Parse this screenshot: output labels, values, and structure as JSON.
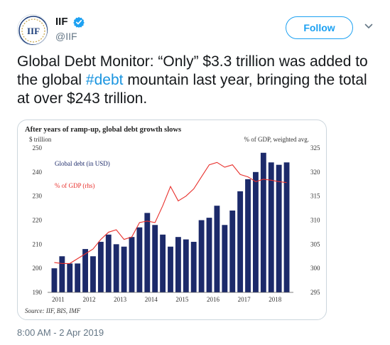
{
  "account": {
    "display_name": "IIF",
    "handle": "@IIF",
    "avatar_initials": "IIF",
    "verified": true
  },
  "follow_label": "Follow",
  "tweet": {
    "text_before": "Global Debt Monitor: “Only” $3.3 trillion was added to the global ",
    "hashtag": "#debt",
    "text_after": " mountain last year, bringing the total at over $243 trillion."
  },
  "timestamp": "8:00 AM - 2 Apr 2019",
  "colors": {
    "bar": "#1c2a6a",
    "line": "#e8302c",
    "link": "#1b95e0",
    "follow": "#1da1f2"
  },
  "chart_data": {
    "type": "bar",
    "title": "After years of ramp-up, global debt growth slows",
    "left_unit": "$ trillion",
    "right_unit": "% of GDP, weighted avg.",
    "source": "Source: IIF, BIS, IMF",
    "ylim": [
      190,
      250
    ],
    "y_ticks": [
      190,
      200,
      210,
      220,
      230,
      240,
      250
    ],
    "y2lim": [
      295,
      325
    ],
    "y2_ticks": [
      295,
      300,
      305,
      310,
      315,
      320,
      325
    ],
    "x_tick_labels": [
      "2011",
      "2012",
      "2013",
      "2014",
      "2015",
      "2016",
      "2017",
      "2018"
    ],
    "series": [
      {
        "name": "Global debt (in USD)",
        "kind": "bar",
        "axis": "left",
        "values": [
          200,
          205,
          202,
          202,
          208,
          205,
          211,
          214,
          210,
          209,
          213,
          217,
          223,
          218,
          214,
          209,
          213,
          212,
          211,
          220,
          221,
          226,
          218,
          224,
          232,
          237,
          240,
          248,
          244,
          243,
          244
        ]
      },
      {
        "name": "% of GDP (rhs)",
        "kind": "line",
        "axis": "right",
        "values": [
          301.2,
          301.0,
          301.0,
          302.0,
          303.0,
          304.0,
          306.0,
          307.5,
          308.0,
          306.0,
          306.5,
          309.5,
          309.8,
          309.5,
          313.0,
          317.0,
          314.0,
          315.0,
          316.5,
          319.0,
          321.5,
          322.0,
          321.0,
          321.5,
          319.5,
          319.0,
          318.0,
          318.5,
          318.3,
          318.0,
          317.8
        ]
      }
    ]
  }
}
